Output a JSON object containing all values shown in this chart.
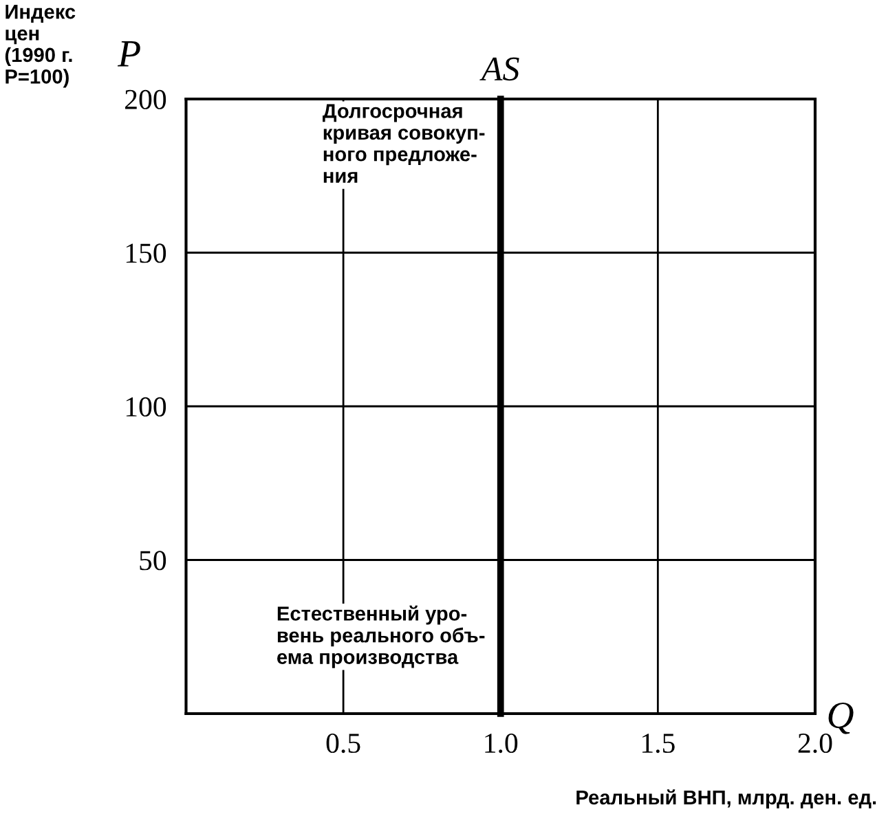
{
  "chart_data": {
    "type": "line",
    "xlabel": "Q",
    "ylabel": "P",
    "series": [
      {
        "name": "AS",
        "color": "#000000",
        "x": [
          1.0,
          1.0
        ],
        "values": [
          0,
          200
        ]
      }
    ],
    "xlim": [
      0,
      2.0
    ],
    "ylim": [
      0,
      200
    ],
    "xticks": [
      {
        "value": 0.5,
        "label": "0.5"
      },
      {
        "value": 1.0,
        "label": "1.0"
      },
      {
        "value": 1.5,
        "label": "1.5"
      },
      {
        "value": 2.0,
        "label": "2.0"
      }
    ],
    "yticks": [
      50,
      100,
      150,
      200
    ],
    "grid": true,
    "legend": false,
    "marker": "none",
    "line_style": "solid",
    "annotations": [
      "Индекс\nцен\n(1990 г.\nP=100)",
      "Реальный ВНП, млрд. ден. ед.",
      {
        "text": "Долгосрочная\nкривая совокуп-\nного предложе-\nния",
        "x": 1.0,
        "y": 185
      },
      {
        "text": "Естественный уро-\nвень реального объ-\nема производства",
        "x": 1.0,
        "y": 25
      }
    ]
  }
}
